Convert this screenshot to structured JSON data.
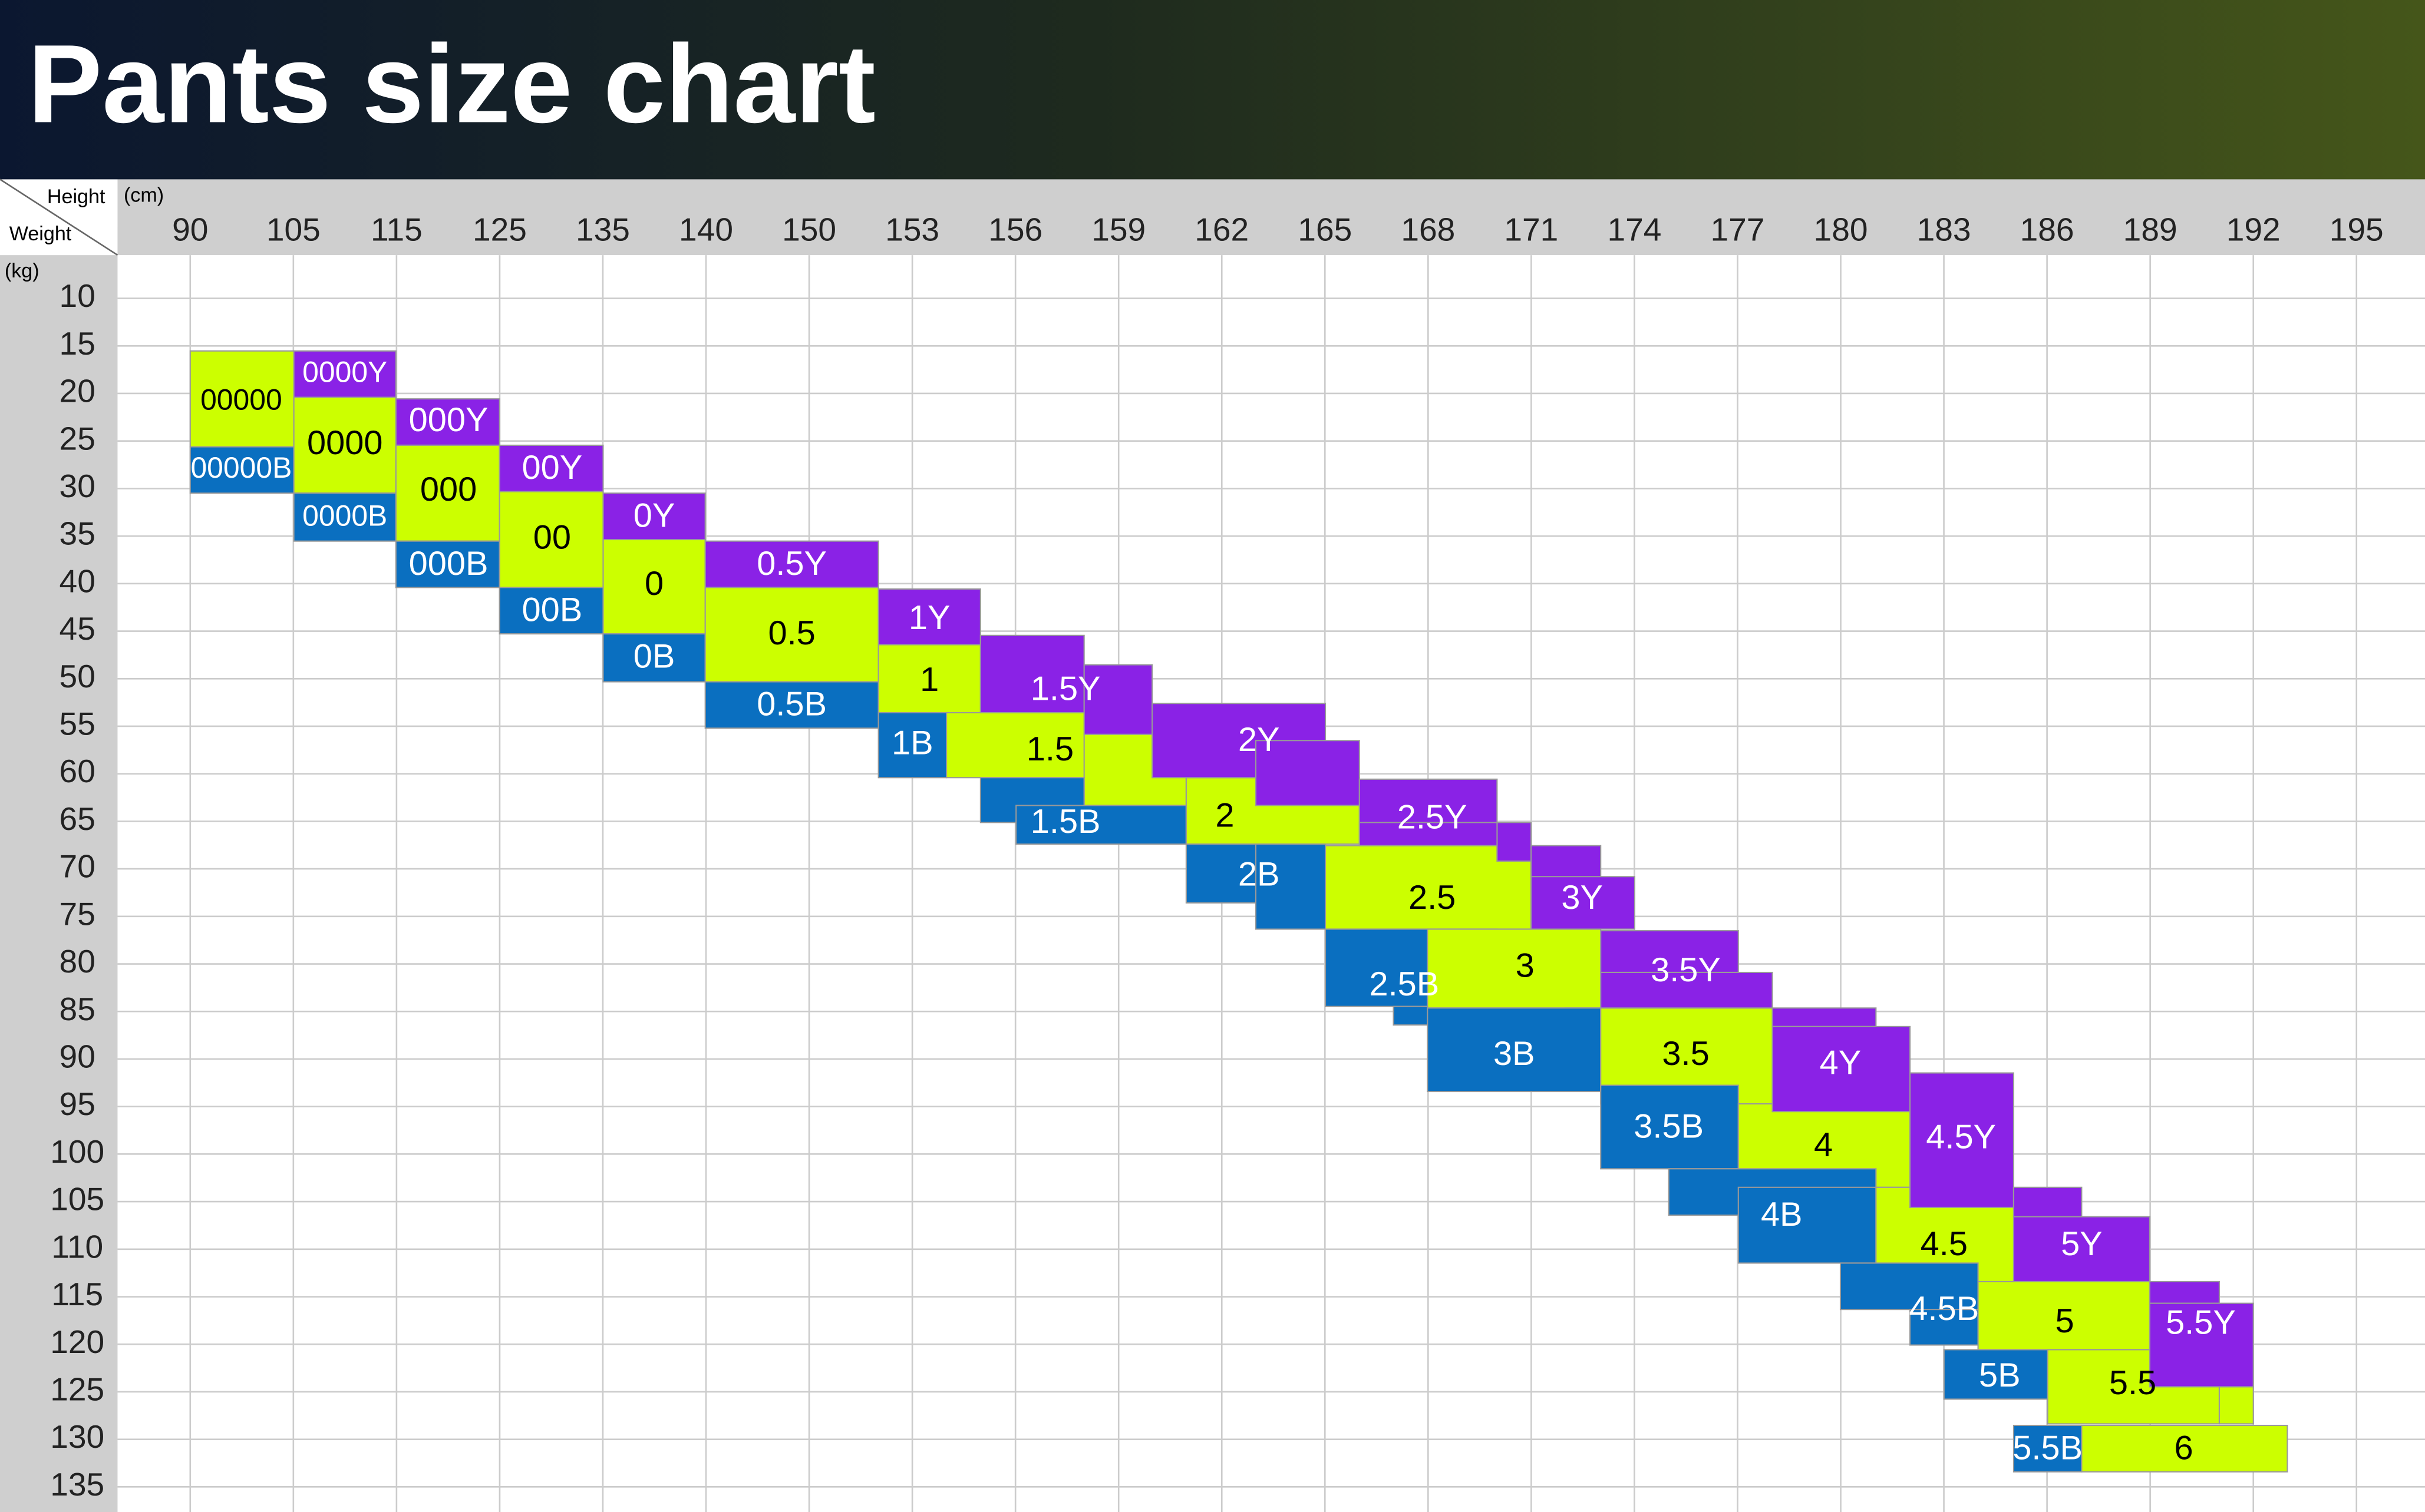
{
  "header": {
    "title": "Pants size chart"
  },
  "corner": {
    "height": "Height",
    "weight": "Weight",
    "height_unit": "(cm)",
    "weight_unit": "(kg)"
  },
  "heights": [
    90,
    105,
    115,
    125,
    135,
    140,
    150,
    153,
    156,
    159,
    162,
    165,
    168,
    171,
    174,
    177,
    180,
    183,
    186,
    189,
    192,
    195
  ],
  "weights": [
    10,
    15,
    20,
    25,
    30,
    35,
    40,
    45,
    50,
    55,
    60,
    65,
    70,
    75,
    80,
    85,
    90,
    95,
    100,
    105,
    110,
    115,
    120,
    125,
    130,
    135
  ],
  "colors": {
    "Y": "#8a22e6",
    "regular": "#ccff00",
    "B": "#0a6fc0"
  },
  "sizes": [
    {
      "label": "00000",
      "kind": "regular"
    },
    {
      "label": "00000B",
      "kind": "B"
    },
    {
      "label": "0000Y",
      "kind": "Y"
    },
    {
      "label": "0000",
      "kind": "regular"
    },
    {
      "label": "0000B",
      "kind": "B"
    },
    {
      "label": "000Y",
      "kind": "Y"
    },
    {
      "label": "000",
      "kind": "regular"
    },
    {
      "label": "000B",
      "kind": "B"
    },
    {
      "label": "00Y",
      "kind": "Y"
    },
    {
      "label": "00",
      "kind": "regular"
    },
    {
      "label": "00B",
      "kind": "B"
    },
    {
      "label": "0Y",
      "kind": "Y"
    },
    {
      "label": "0",
      "kind": "regular"
    },
    {
      "label": "0B",
      "kind": "B"
    },
    {
      "label": "0.5Y",
      "kind": "Y"
    },
    {
      "label": "0.5",
      "kind": "regular"
    },
    {
      "label": "0.5B",
      "kind": "B"
    },
    {
      "label": "1Y",
      "kind": "Y"
    },
    {
      "label": "1",
      "kind": "regular"
    },
    {
      "label": "1B",
      "kind": "B"
    },
    {
      "label": "1.5",
      "kind": "regular"
    },
    {
      "label": "1.5Y",
      "kind": "Y"
    },
    {
      "label": "1.5B",
      "kind": "B"
    },
    {
      "label": "2",
      "kind": "regular"
    },
    {
      "label": "2Y",
      "kind": "Y"
    },
    {
      "label": "2B",
      "kind": "B"
    },
    {
      "label": "2.5",
      "kind": "regular"
    },
    {
      "label": "2.5Y",
      "kind": "Y"
    },
    {
      "label": "2.5B",
      "kind": "B"
    },
    {
      "label": "3",
      "kind": "regular"
    },
    {
      "label": "3Y",
      "kind": "Y"
    },
    {
      "label": "3B",
      "kind": "B"
    },
    {
      "label": "3.5",
      "kind": "regular"
    },
    {
      "label": "3.5Y",
      "kind": "Y"
    },
    {
      "label": "3.5B",
      "kind": "B"
    },
    {
      "label": "4",
      "kind": "regular"
    },
    {
      "label": "4Y",
      "kind": "Y"
    },
    {
      "label": "4B",
      "kind": "B"
    },
    {
      "label": "4.5",
      "kind": "regular"
    },
    {
      "label": "4.5Y",
      "kind": "Y"
    },
    {
      "label": "4.5B",
      "kind": "B"
    },
    {
      "label": "5",
      "kind": "regular"
    },
    {
      "label": "5Y",
      "kind": "Y"
    },
    {
      "label": "5B",
      "kind": "B"
    },
    {
      "label": "5.5",
      "kind": "regular"
    },
    {
      "label": "5.5Y",
      "kind": "Y"
    },
    {
      "label": "5.5B",
      "kind": "B"
    },
    {
      "label": "6",
      "kind": "regular"
    }
  ]
}
